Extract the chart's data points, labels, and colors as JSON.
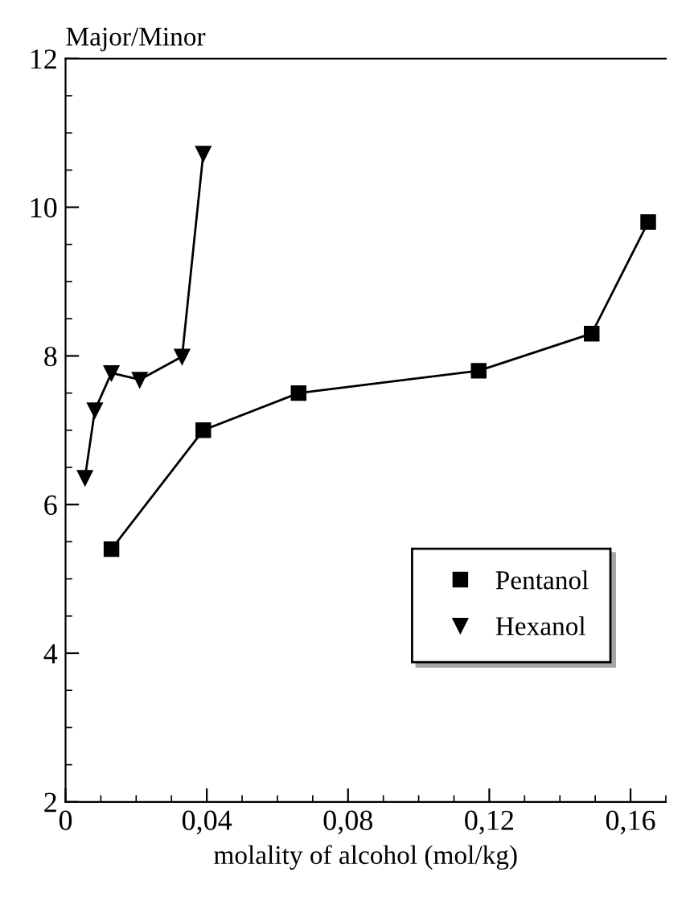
{
  "chart_data": {
    "type": "line",
    "ylabel": "Major/Minor",
    "xlabel": "molality of alcohol (mol/kg)",
    "xlim": [
      0,
      0.17
    ],
    "ylim": [
      2,
      12
    ],
    "xticks": [
      {
        "value": 0,
        "label": "0"
      },
      {
        "value": 0.04,
        "label": "0,04"
      },
      {
        "value": 0.08,
        "label": "0,08"
      },
      {
        "value": 0.12,
        "label": "0,12"
      },
      {
        "value": 0.16,
        "label": "0,16"
      }
    ],
    "yticks": [
      2,
      4,
      6,
      8,
      10,
      12
    ],
    "legend": "bottom right",
    "grid": false,
    "series": [
      {
        "name": "Pentanol",
        "color": "#000000",
        "marker": "square",
        "x": [
          0.013,
          0.039,
          0.066,
          0.117,
          0.149,
          0.165
        ],
        "values": [
          5.4,
          7.0,
          7.5,
          7.8,
          8.3,
          9.8
        ]
      },
      {
        "name": "Hexanol",
        "color": "#000000",
        "marker": "triangle",
        "x": [
          0.0055,
          0.0083,
          0.013,
          0.021,
          0.033,
          0.039
        ],
        "values": [
          6.36,
          7.27,
          7.77,
          7.68,
          7.99,
          10.72
        ]
      }
    ]
  }
}
